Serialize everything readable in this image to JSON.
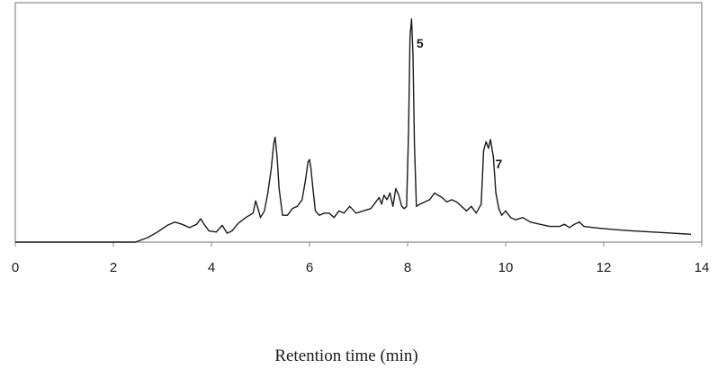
{
  "chart_data": {
    "type": "line",
    "title": "",
    "xlabel": "Retention time (min)",
    "ylabel": "",
    "xlim": [
      0,
      14
    ],
    "ylim": [
      0,
      100
    ],
    "grid": false,
    "legend": "none",
    "line_color": "#1a1a1a",
    "frame_color": "#8a8a8a",
    "x_ticks": [
      "0",
      "2",
      "4",
      "6",
      "8",
      "10",
      "12",
      "14"
    ],
    "peak_labels": [
      {
        "text": "5",
        "x": 8.07,
        "y": 100
      },
      {
        "text": "7",
        "x": 9.68,
        "y": 46
      }
    ],
    "series": [
      {
        "x": [
          0,
          2.45,
          2.7,
          2.9,
          3.1,
          3.25,
          3.4,
          3.55,
          3.7,
          3.78,
          3.85,
          3.95,
          4.1,
          4.22,
          4.32,
          4.42,
          4.55,
          4.7,
          4.85,
          4.9,
          4.95,
          5.0,
          5.08,
          5.15,
          5.22,
          5.27,
          5.3,
          5.34,
          5.38,
          5.45,
          5.55,
          5.65,
          5.75,
          5.85,
          5.92,
          5.97,
          6.0,
          6.03,
          6.07,
          6.12,
          6.2,
          6.3,
          6.4,
          6.5,
          6.6,
          6.7,
          6.82,
          6.95,
          7.1,
          7.25,
          7.35,
          7.42,
          7.47,
          7.52,
          7.58,
          7.64,
          7.7,
          7.76,
          7.82,
          7.88,
          7.93,
          7.98,
          8.02,
          8.05,
          8.08,
          8.11,
          8.14,
          8.18,
          8.25,
          8.35,
          8.45,
          8.55,
          8.62,
          8.7,
          8.8,
          8.9,
          9.0,
          9.1,
          9.2,
          9.3,
          9.4,
          9.5,
          9.55,
          9.6,
          9.65,
          9.69,
          9.75,
          9.8,
          9.86,
          9.92,
          10.0,
          10.1,
          10.2,
          10.35,
          10.5,
          10.7,
          10.9,
          11.1,
          11.2,
          11.3,
          11.4,
          11.5,
          11.6,
          11.8,
          12.0,
          12.3,
          12.6,
          13.0,
          13.4,
          13.78
        ],
        "y": [
          0,
          0,
          2,
          4.5,
          7.5,
          9,
          8,
          6.5,
          8,
          10.5,
          8,
          5,
          4.5,
          7.5,
          4,
          5,
          8.5,
          11,
          13,
          18.5,
          15,
          11,
          14,
          22,
          33,
          44,
          47,
          38,
          24,
          12,
          12,
          15,
          16,
          19,
          28,
          36,
          37,
          33,
          24,
          14,
          12,
          13,
          13,
          11,
          14,
          13,
          16,
          13,
          14,
          15,
          18,
          20,
          17,
          21,
          19,
          22,
          16,
          24,
          21,
          16,
          15,
          16,
          50,
          92,
          100,
          84,
          44,
          16,
          17,
          18,
          19,
          22,
          21,
          20,
          18,
          19,
          18,
          16,
          14,
          16,
          13,
          17,
          41,
          45,
          42,
          46,
          38,
          22,
          15,
          12,
          14,
          11,
          10,
          11,
          9,
          8,
          7,
          7,
          8,
          6.5,
          8,
          9,
          7,
          6.5,
          6,
          5.5,
          5,
          4.5,
          4,
          3.5
        ]
      }
    ]
  }
}
